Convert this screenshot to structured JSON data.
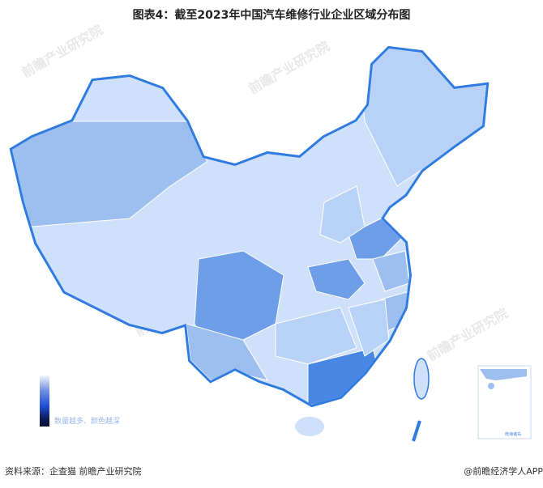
{
  "title": "图表4：截至2023年中国汽车维修行业企业区域分布图",
  "legend": {
    "label": "数量越多、颜色越深",
    "colors": [
      "#f4f6fb",
      "#6f8fe0",
      "#1f4fd6",
      "#061030"
    ]
  },
  "inset_label": "南海诸岛",
  "source": "资料来源：企查猫 前瞻产业研究院",
  "credit": "@前瞻经济学人APP",
  "watermark": "前瞻产业研究院",
  "colors": {
    "border": "#2f7be0",
    "lightest": "#cfe0fb",
    "light": "#b7d2f6",
    "mid": "#9dbff0",
    "dark": "#6f9ee8",
    "darkest": "#4887e3"
  }
}
